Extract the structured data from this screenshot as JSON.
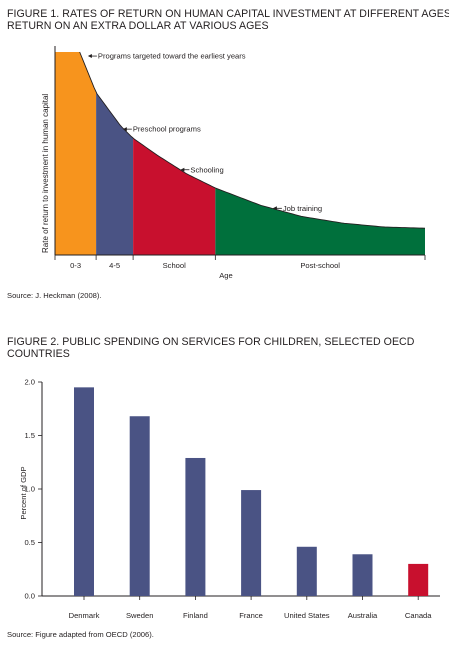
{
  "figures": [
    {
      "title": "FIGURE 1. RATES OF RETURN ON HUMAN CAPITAL INVESTMENT AT DIFFERENT AGES",
      "subtitle": "RETURN ON AN EXTRA DOLLAR AT VARIOUS AGES",
      "source": "Source: J. Heckman (2008)."
    },
    {
      "title": "FIGURE 2. PUBLIC SPENDING ON SERVICES FOR CHILDREN, SELECTED OECD COUNTRIES",
      "source": "Source: Figure adapted from OECD (2006)."
    }
  ],
  "chart_data": [
    {
      "type": "area",
      "xlabel": "Age",
      "ylabel": "Rate of return to investment in human capital",
      "x_ticks": [
        "0-3",
        "4-5",
        "School",
        "Post-school"
      ],
      "segments": [
        {
          "label": "0-3",
          "x_range": [
            0,
            1.0
          ],
          "color": "#f7941d"
        },
        {
          "label": "4-5",
          "x_range": [
            1.0,
            1.9
          ],
          "color": "#4a5384"
        },
        {
          "label": "School",
          "x_range": [
            1.9,
            3.9
          ],
          "color": "#c8102e"
        },
        {
          "label": "Post-school",
          "x_range": [
            3.9,
            9.0
          ],
          "color": "#00703c"
        }
      ],
      "curve": [
        [
          0,
          1.0
        ],
        [
          0.6,
          1.0
        ],
        [
          1.0,
          0.8
        ],
        [
          1.6,
          0.635
        ],
        [
          1.9,
          0.575
        ],
        [
          2.5,
          0.49
        ],
        [
          3.2,
          0.4
        ],
        [
          3.9,
          0.33
        ],
        [
          5.0,
          0.245
        ],
        [
          6.0,
          0.19
        ],
        [
          7.0,
          0.157
        ],
        [
          8.0,
          0.138
        ],
        [
          9.0,
          0.132
        ]
      ],
      "annotations": [
        {
          "text": "Programs targeted toward the earliest years",
          "x": 0.8,
          "y": 0.98
        },
        {
          "text": "Preschool programs",
          "x": 1.65,
          "y": 0.62
        },
        {
          "text": "Schooling",
          "x": 3.05,
          "y": 0.42
        },
        {
          "text": "Job training",
          "x": 5.3,
          "y": 0.23
        }
      ],
      "grid": false,
      "legend": "none"
    },
    {
      "type": "bar",
      "ylabel": "Percent of GDP",
      "categories": [
        "Denmark",
        "Sweden",
        "Finland",
        "France",
        "United States",
        "Australia",
        "Canada"
      ],
      "values": [
        1.95,
        1.68,
        1.29,
        0.99,
        0.46,
        0.39,
        0.3
      ],
      "colors": [
        "#4a5384",
        "#4a5384",
        "#4a5384",
        "#4a5384",
        "#4a5384",
        "#4a5384",
        "#c8102e"
      ],
      "ylim": [
        0,
        2.0
      ],
      "y_ticks": [
        "0.0",
        "0.5",
        "1.0",
        "1.5",
        "2.0"
      ],
      "grid": false,
      "legend": "none"
    }
  ]
}
